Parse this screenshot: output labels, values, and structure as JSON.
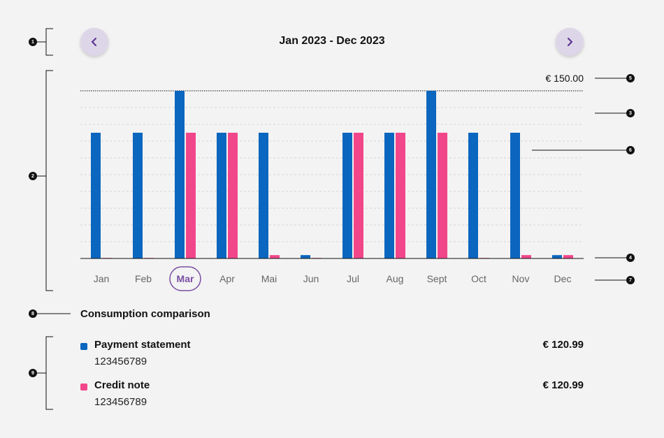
{
  "header": {
    "period": "Jan 2023 - Dec 2023"
  },
  "markers": [
    "1",
    "2",
    "3",
    "4",
    "5",
    "6",
    "7",
    "8",
    "9"
  ],
  "colors": {
    "payment": "#0a66bf",
    "credit": "#f2468a",
    "accent": "#7a4ea3",
    "nav_bg": "#ddd6e9"
  },
  "chart_data": {
    "type": "bar",
    "categories": [
      "Jan",
      "Feb",
      "Mar",
      "Apr",
      "Mai",
      "Jun",
      "Jul",
      "Aug",
      "Sept",
      "Oct",
      "Nov",
      "Dec"
    ],
    "selected_category": "Mar",
    "series": [
      {
        "name": "Payment statement",
        "values": [
          112.5,
          112.5,
          150,
          112.5,
          112.5,
          3,
          112.5,
          112.5,
          150,
          112.5,
          112.5,
          3
        ]
      },
      {
        "name": "Credit note",
        "values": [
          0.5,
          0.5,
          112.5,
          112.5,
          3,
          0.5,
          112.5,
          112.5,
          112.5,
          0.5,
          3,
          3
        ]
      }
    ],
    "ylim": [
      0,
      150
    ],
    "max_line_label": "€ 150.00",
    "grid": true,
    "xlabel": "",
    "ylabel": "",
    "title": ""
  },
  "comparison": {
    "title": "Consumption comparison",
    "items": [
      {
        "label": "Payment statement",
        "number": "123456789",
        "amount": "€ 120.99",
        "color": "#0a66bf"
      },
      {
        "label": "Credit note",
        "number": "123456789",
        "amount": "€ 120.99",
        "color": "#f2468a"
      }
    ]
  }
}
